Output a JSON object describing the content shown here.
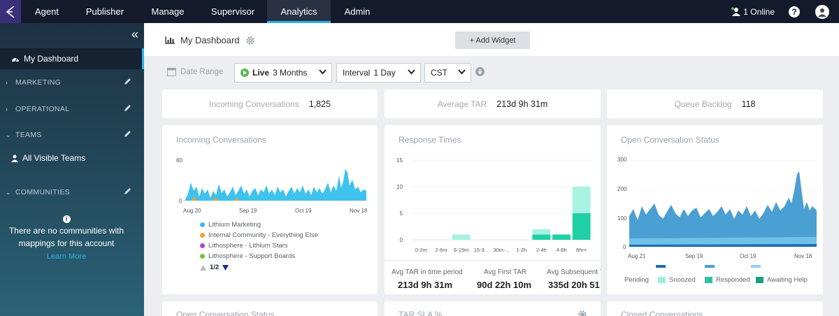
{
  "nav": {
    "tabs": [
      "Agent",
      "Publisher",
      "Manage",
      "Supervisor",
      "Analytics",
      "Admin"
    ],
    "active": "Analytics",
    "online": "1 Online",
    "help": "?"
  },
  "sidebar": {
    "collapse": "«",
    "active_item": "My Dashboard",
    "sections": [
      "MARKETING",
      "OPERATIONAL",
      "TEAMS",
      "COMMUNITIES"
    ],
    "team_item": "All Visible Teams",
    "communities_message": "There are no communities with mappings for this account",
    "learn_more": "Learn More"
  },
  "header": {
    "title": "My Dashboard",
    "add_widget": "+ Add Widget"
  },
  "filters": {
    "date_range": "Date Range",
    "live_label": "Live",
    "live_value": "3 Months",
    "interval_label": "Interval",
    "interval_value": "1 Day",
    "timezone": "CST"
  },
  "stats": [
    {
      "label": "Incoming Conversations",
      "value": "1,825"
    },
    {
      "label": "Average TAR",
      "value": "213d 9h 31m"
    },
    {
      "label": "Queue Backlog",
      "value": "118"
    }
  ],
  "incoming_widget": {
    "title": "Incoming Conversations",
    "y_ticks": [
      "80",
      "0"
    ],
    "x_ticks": [
      "Aug 20",
      "Sep 19",
      "Oct 19",
      "Nov 18"
    ],
    "legend": [
      {
        "name": "Lithium Marketing",
        "color": "#3fb7e6"
      },
      {
        "name": "Internal Community - Everything Else",
        "color": "#f0a030"
      },
      {
        "name": "Lithosphere - Lithium Stars",
        "color": "#a64ac9"
      },
      {
        "name": "Lithosphere - Support Boards",
        "color": "#7ac142"
      }
    ],
    "pager": "1/2"
  },
  "response_widget": {
    "title": "Response Times",
    "y_ticks": [
      "15",
      "10",
      "5",
      "0"
    ],
    "x_ticks": [
      "0-2m",
      "2-6m",
      "6-15m",
      "15-3...",
      "30m-...",
      "1-2h",
      "2-4h",
      "4-8h",
      "8hr+"
    ],
    "metrics": [
      {
        "label": "Avg TAR in time period",
        "value": "213d 9h 31m"
      },
      {
        "label": "Avg First TAR",
        "value": "90d 22h 10m"
      },
      {
        "label": "Avg Subsequent T",
        "value": "335d 20h 51"
      }
    ]
  },
  "open_status_widget": {
    "title": "Open Conversation Status",
    "y_ticks": [
      "300",
      "200",
      "100",
      "0"
    ],
    "x_ticks": [
      "Aug 21",
      "Sep 19",
      "Oct 19",
      "Nov 18"
    ],
    "pending_label": "Pending",
    "pending_legend": [
      {
        "name": "Snoozed",
        "color": "#9ff0dc"
      },
      {
        "name": "Responded",
        "color": "#2cc4a3"
      },
      {
        "name": "Awaiting Help",
        "color": "#18a07f"
      }
    ]
  },
  "bottom_titles": [
    "Open Conversation Status",
    "TAR SLA %",
    "Closed Conversations"
  ],
  "chart_data": [
    {
      "type": "bar",
      "title": "Response Times",
      "categories": [
        "0-2m",
        "2-6m",
        "6-15m",
        "15-3...",
        "30m-...",
        "1-2h",
        "2-4h",
        "4-8h",
        "8hr+"
      ],
      "series": [
        {
          "values": [
            0,
            0,
            0,
            0,
            0,
            0,
            1,
            1,
            5
          ],
          "color": "#1fd0a4"
        },
        {
          "values": [
            0,
            0,
            1,
            0,
            0,
            0,
            1,
            0,
            5
          ],
          "color": "#a8f2e2"
        }
      ],
      "ylim": [
        0,
        15
      ]
    }
  ]
}
